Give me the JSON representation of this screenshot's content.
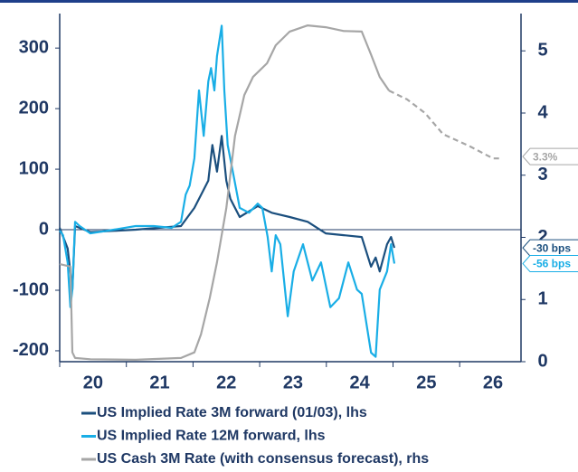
{
  "chart_data": {
    "type": "line",
    "xlim": [
      20,
      26.92
    ],
    "xticks": [
      {
        "value": 20.5,
        "label": "20"
      },
      {
        "value": 21.5,
        "label": "21"
      },
      {
        "value": 22.5,
        "label": "22"
      },
      {
        "value": 23.5,
        "label": "23"
      },
      {
        "value": 24.5,
        "label": "24"
      },
      {
        "value": 25.5,
        "label": "25"
      },
      {
        "value": 26.5,
        "label": "26"
      }
    ],
    "xminorticks": [
      20,
      21,
      22,
      23,
      24,
      25,
      26
    ],
    "ylim": [
      -218,
      357
    ],
    "yticks": [
      -200,
      -100,
      0,
      100,
      200,
      300
    ],
    "y2lim": [
      0,
      5.6
    ],
    "y2ticks": [
      0,
      1,
      2,
      3,
      4,
      5
    ],
    "zero_line": true,
    "series": [
      {
        "name": "US Implied Rate 3M forward (01/03), lhs",
        "color": "#1b4f7e",
        "x": [
          20.0,
          20.12,
          20.19,
          20.23,
          20.46,
          21.14,
          21.82,
          22.02,
          22.16,
          22.23,
          22.29,
          22.36,
          22.43,
          22.5,
          22.56,
          22.7,
          22.97,
          23.18,
          23.45,
          23.72,
          23.99,
          24.26,
          24.53,
          24.67,
          24.74,
          24.8,
          24.91,
          24.97,
          25.02
        ],
        "values": [
          3,
          -31,
          -99,
          6,
          -4,
          0,
          6,
          36,
          66,
          81,
          140,
          96,
          155,
          81,
          51,
          21,
          39,
          28,
          21,
          13,
          -6,
          -9,
          -12,
          -61,
          -46,
          -69,
          -24,
          -12,
          -30
        ]
      },
      {
        "name": "US Implied Rate 12M forward, lhs",
        "color": "#19aee6",
        "x": [
          20.0,
          20.05,
          20.12,
          20.16,
          20.19,
          20.23,
          20.3,
          20.46,
          20.73,
          21.14,
          21.41,
          21.68,
          21.82,
          21.89,
          21.95,
          22.02,
          22.09,
          22.16,
          22.23,
          22.27,
          22.32,
          22.36,
          22.43,
          22.47,
          22.52,
          22.61,
          22.7,
          22.84,
          22.97,
          23.04,
          23.12,
          23.18,
          23.24,
          23.31,
          23.42,
          23.51,
          23.65,
          23.79,
          23.92,
          24.06,
          24.19,
          24.33,
          24.46,
          24.53,
          24.67,
          24.74,
          24.8,
          24.91,
          24.97,
          25.02
        ],
        "values": [
          -1.5,
          -9,
          -54,
          -128,
          -99,
          13,
          6,
          -6,
          -1.5,
          6,
          6,
          3,
          13,
          58,
          73,
          118,
          230,
          155,
          245,
          267,
          230,
          287,
          337,
          230,
          140,
          88,
          36,
          28,
          43,
          36,
          -12,
          -69,
          -9,
          -24,
          -143,
          -69,
          -24,
          -84,
          -54,
          -128,
          -113,
          -54,
          -99,
          -106,
          -203,
          -210,
          -99,
          -69,
          -24,
          -56
        ]
      },
      {
        "name": "US Cash 3M Rate (with consensus forecast), rhs",
        "color": "#a6a6a6",
        "axis": "y2",
        "forecast_from": 24.94,
        "x": [
          20.0,
          20.16,
          20.19,
          20.23,
          20.46,
          21.14,
          21.82,
          22.02,
          22.12,
          22.25,
          22.36,
          22.5,
          22.63,
          22.77,
          22.9,
          23.11,
          23.24,
          23.45,
          23.72,
          23.99,
          24.26,
          24.53,
          24.67,
          24.8,
          24.94,
          25.21,
          25.48,
          25.75,
          26.16,
          26.5,
          26.59
        ],
        "values": [
          1.57,
          1.53,
          0.15,
          0.06,
          0.04,
          0.03,
          0.06,
          0.15,
          0.44,
          1.02,
          1.6,
          2.47,
          3.63,
          4.29,
          4.58,
          4.8,
          5.09,
          5.31,
          5.41,
          5.38,
          5.32,
          5.31,
          4.94,
          4.58,
          4.36,
          4.22,
          4.0,
          3.66,
          3.46,
          3.27,
          3.27
        ]
      }
    ],
    "annotations": [
      {
        "text": "3.3%",
        "value": 3.3,
        "axis": "y2",
        "color": "#a6a6a6"
      },
      {
        "text": "-30 bps",
        "value": -30,
        "color": "#1b4f7e"
      },
      {
        "text": "-56 bps",
        "value": -56,
        "color": "#19aee6"
      }
    ]
  }
}
